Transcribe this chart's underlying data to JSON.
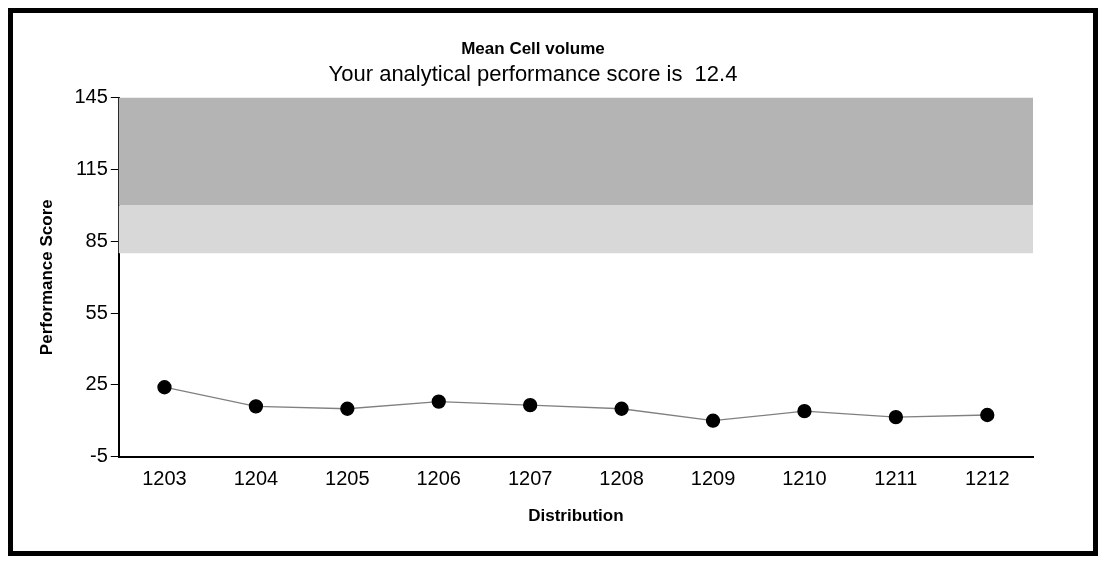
{
  "chart_data": {
    "type": "line",
    "title": "Mean Cell volume",
    "subtitle": "Your analytical performance score is  12.4",
    "xlabel": "Distribution",
    "ylabel": "Performance Score",
    "categories": [
      "1203",
      "1204",
      "1205",
      "1206",
      "1207",
      "1208",
      "1209",
      "1210",
      "1211",
      "1212"
    ],
    "series": [
      {
        "color": "#000000",
        "values": [
          24,
          16,
          15,
          18,
          16.5,
          15,
          10,
          14,
          11.5,
          12.4
        ]
      }
    ],
    "ylim": [
      -5,
      145
    ],
    "yticks": [
      -5,
      25,
      55,
      85,
      115,
      145
    ],
    "bands": [
      {
        "axis": "y",
        "from": 100,
        "to": 145,
        "color": "#b4b4b4"
      },
      {
        "axis": "y",
        "from": 80,
        "to": 100,
        "color": "#d8d8d8"
      }
    ],
    "grid": false,
    "legend": false,
    "marker": "circle",
    "line_style": "solid"
  }
}
